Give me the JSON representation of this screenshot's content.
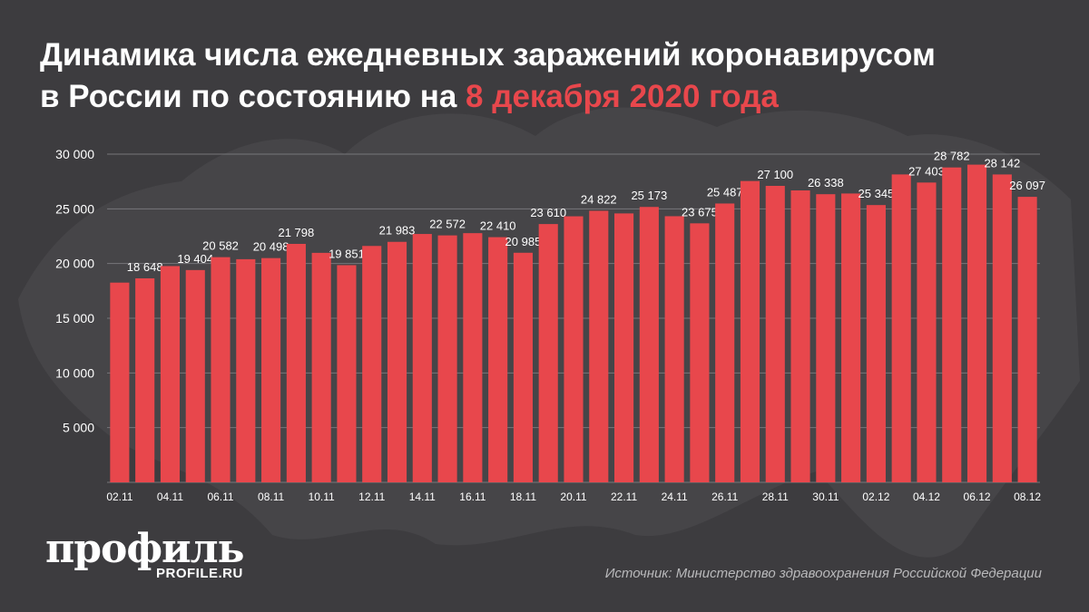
{
  "title": {
    "line1": "Динамика числа ежедневных заражений коронавирусом",
    "line2_prefix": "в России по состоянию на ",
    "line2_accent": "8 декабря 2020 года"
  },
  "colors": {
    "background": "#3d3c3f",
    "bar": "#e8474c",
    "accent": "#e8474c",
    "text": "#ffffff",
    "grid": "#77767a"
  },
  "chart_data": {
    "type": "bar",
    "categories": [
      "02.11",
      "03.11",
      "04.11",
      "05.11",
      "06.11",
      "07.11",
      "08.11",
      "09.11",
      "10.11",
      "11.11",
      "12.11",
      "13.11",
      "14.11",
      "15.11",
      "16.11",
      "17.11",
      "18.11",
      "19.11",
      "20.11",
      "21.11",
      "22.11",
      "23.11",
      "24.11",
      "25.11",
      "26.11",
      "27.11",
      "28.11",
      "29.11",
      "30.11",
      "01.12",
      "02.12",
      "03.12",
      "04.12",
      "05.12",
      "06.12",
      "07.12",
      "08.12"
    ],
    "values": [
      18257,
      18648,
      19768,
      19404,
      20582,
      20396,
      20498,
      21798,
      20977,
      19851,
      21608,
      21983,
      22702,
      22572,
      22778,
      22410,
      20985,
      23610,
      24318,
      24822,
      24581,
      25173,
      24326,
      23675,
      25487,
      27543,
      27100,
      26683,
      26338,
      26402,
      25345,
      28145,
      27403,
      28782,
      29039,
      28142,
      26097
    ],
    "labels": {
      "1": "18 648",
      "3": "19 404",
      "4": "20 582",
      "6": "20 498",
      "7": "21 798",
      "9": "19 851",
      "11": "21 983",
      "13": "22 572",
      "15": "22 410",
      "16": "20 985",
      "17": "23 610",
      "19": "24 822",
      "21": "25 173",
      "23": "23 675",
      "24": "25 487",
      "26": "27 100",
      "28": "26 338",
      "30": "25 345",
      "32": "27 403",
      "33": "28 782",
      "35": "28 142",
      "36": "26 097"
    },
    "x_tick_labels": [
      "02.11",
      "04.11",
      "06.11",
      "08.11",
      "10.11",
      "12.11",
      "14.11",
      "16.11",
      "18.11",
      "20.11",
      "22.11",
      "24.11",
      "26.11",
      "28.11",
      "30.11",
      "02.12",
      "04.12",
      "06.12",
      "08.12"
    ],
    "y_ticks": [
      5000,
      10000,
      15000,
      20000,
      25000,
      30000
    ],
    "y_tick_labels": [
      "5 000",
      "10 000",
      "15 000",
      "20 000",
      "25 000",
      "30 000"
    ],
    "ylim": [
      0,
      30000
    ],
    "grid": true,
    "legend": "none"
  },
  "logo": {
    "name": "профиль",
    "sub": "PROFILE.RU"
  },
  "source": "Источник: Министерство здравоохранения Российской Федерации"
}
